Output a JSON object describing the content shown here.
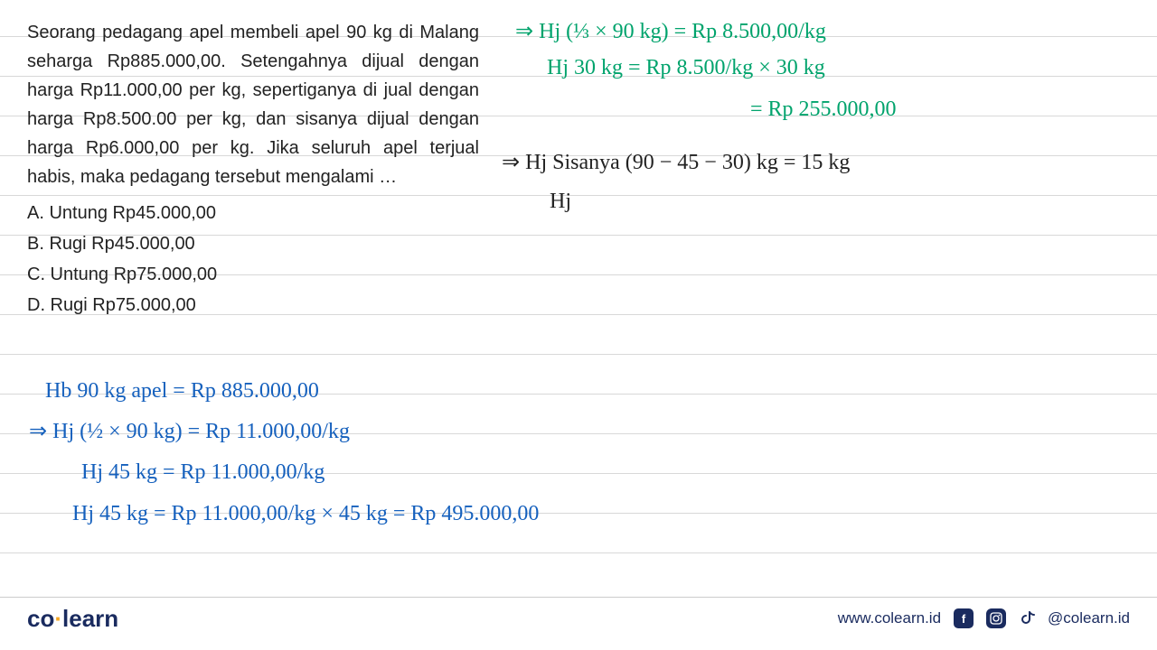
{
  "question": {
    "text": "Seorang pedagang apel membeli apel 90 kg di Malang seharga Rp885.000,00. Setengahnya dijual dengan harga Rp11.000,00 per kg, sepertiganya di jual dengan harga Rp8.500.00 per kg, dan sisanya dijual dengan harga Rp6.000,00 per kg. Jika seluruh apel terjual habis, maka pedagang tersebut mengalami …",
    "options": {
      "a": "A.  Untung Rp45.000,00",
      "b": "B.  Rugi Rp45.000,00",
      "c": "C.  Untung Rp75.000,00",
      "d": "D.  Rugi Rp75.000,00"
    }
  },
  "hw_green": {
    "line1": "⇒ Hj (⅓ × 90 kg)  =  Rp 8.500,00/kg",
    "line2": "Hj  30 kg   = Rp 8.500/kg × 30 kg",
    "line3": "= Rp 255.000,00"
  },
  "hw_black": {
    "line1": "⇒ Hj Sisanya (90 − 45 − 30) kg = 15 kg",
    "line2": "Hj"
  },
  "hw_blue": {
    "line1": "Hb  90 kg  apel = Rp 885.000,00",
    "line2": "⇒  Hj   (½ × 90 kg)  =  Rp 11.000,00/kg",
    "line3": "Hj  45 kg   =  Rp 11.000,00/kg",
    "line4": "Hj 45 kg = Rp 11.000,00/kg × 45 kg = Rp 495.000,00"
  },
  "footer": {
    "logo_co": "co",
    "logo_dot": "·",
    "logo_learn": "learn",
    "website": "www.colearn.id",
    "handle": "@colearn.id"
  },
  "style": {
    "ruled_line_color": "#d8d8d8",
    "green_color": "#00a36c",
    "blue_color": "#1560bd",
    "black_color": "#222222",
    "brand_color": "#1a2b5f",
    "accent_color": "#f5a623",
    "ruled_line_start": 40,
    "ruled_line_spacing": 44,
    "ruled_line_count": 14
  }
}
